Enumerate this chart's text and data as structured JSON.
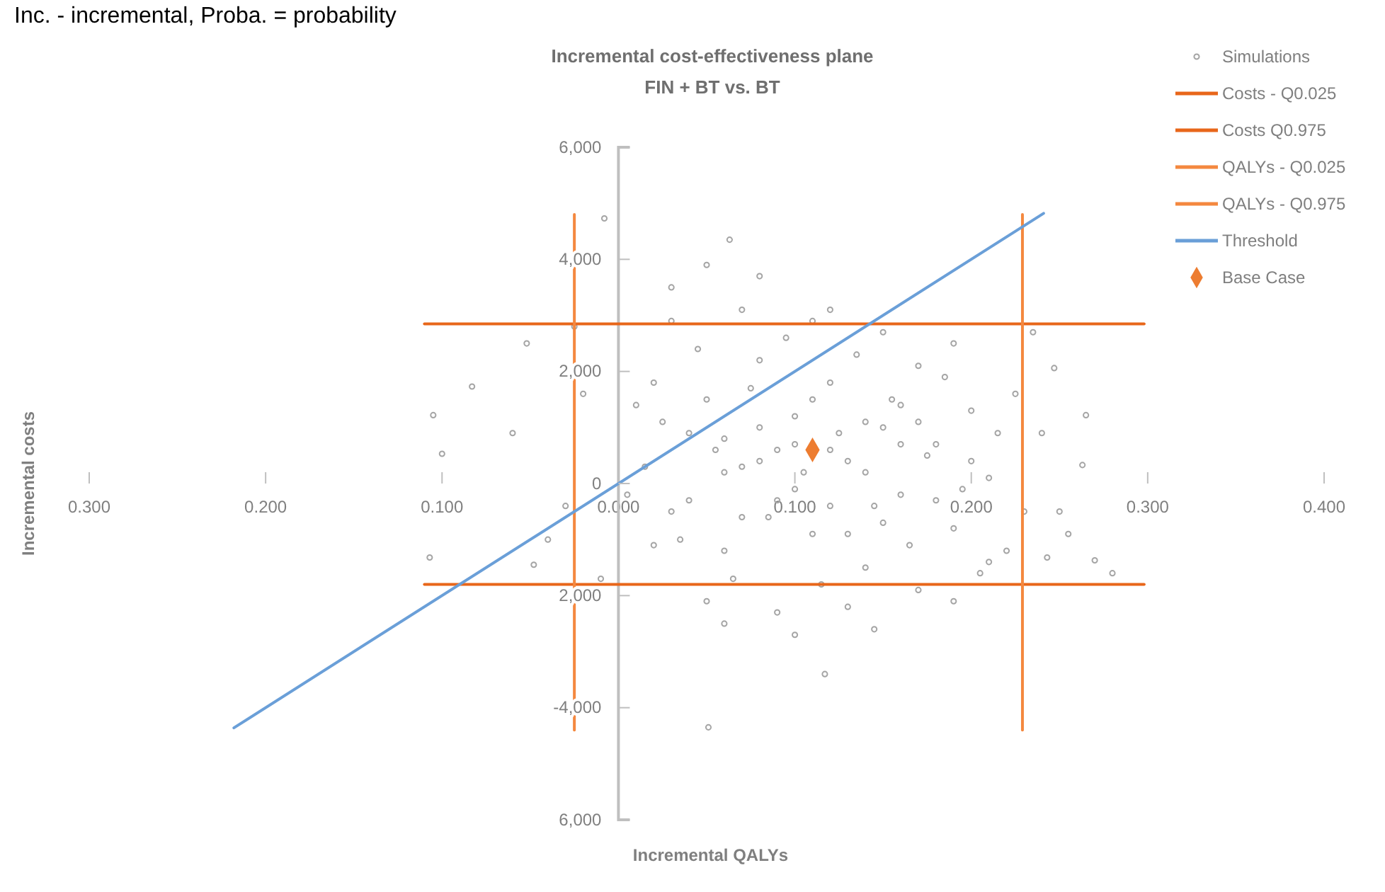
{
  "chart_data": {
    "type": "scatter",
    "title": "Incremental cost-effectiveness plane",
    "subtitle": "FIN + BT vs. BT",
    "xlabel": "Incremental QALYs",
    "ylabel": "Incremental costs",
    "annotations": [
      "Inc. - incremental, Proba. = probability"
    ],
    "xlim": [
      -0.3,
      0.4
    ],
    "ylim": [
      -6000,
      6000
    ],
    "xticks": [
      {
        "value": -0.3,
        "label": "0.300"
      },
      {
        "value": -0.2,
        "label": "0.200"
      },
      {
        "value": -0.1,
        "label": "0.100"
      },
      {
        "value": 0,
        "label": "0.000"
      },
      {
        "value": 0.1,
        "label": "0.100"
      },
      {
        "value": 0.2,
        "label": "0.200"
      },
      {
        "value": 0.3,
        "label": "0.300"
      },
      {
        "value": 0.4,
        "label": "0.400"
      }
    ],
    "yticks": [
      {
        "value": -6000,
        "label": "6,000"
      },
      {
        "value": -4000,
        "label": "-4,000"
      },
      {
        "value": -2000,
        "label": "2,000"
      },
      0,
      {
        "value": 2000,
        "label": "2,000"
      },
      {
        "value": 4000,
        "label": "4,000"
      },
      {
        "value": 6000,
        "label": "6,000"
      }
    ],
    "legend": "right",
    "series": [
      {
        "name": "Simulations",
        "marker": "circle",
        "color": "#a5a5a5",
        "x": [
          0.02,
          0.03,
          0.04,
          0.05,
          0.06,
          0.07,
          0.08,
          0.09,
          0.1,
          0.11,
          0.12,
          0.13,
          0.14,
          0.15,
          0.16,
          0.17,
          0.18,
          0.19,
          0.2,
          0.21,
          0.22,
          0.015,
          0.025,
          0.035,
          0.045,
          0.055,
          0.065,
          0.075,
          0.085,
          0.095,
          0.105,
          0.115,
          0.125,
          0.135,
          0.145,
          0.155,
          0.165,
          0.175,
          0.185,
          0.195,
          0.205,
          0.215,
          0.005,
          0.01,
          0.03,
          0.05,
          0.07,
          0.09,
          0.11,
          0.13,
          0.15,
          0.17,
          0.19,
          0.21,
          0.225,
          0.23,
          0.06,
          0.08,
          0.1,
          0.12,
          0.14,
          0.16,
          0.18,
          0.1,
          0.12,
          0.08,
          0.14,
          0.16,
          0.06,
          0.04,
          0.11,
          0.13,
          0.09,
          0.15,
          0.17,
          0.07,
          0.2,
          0.02,
          -0.008,
          0.063,
          0.05,
          0.08,
          0.12,
          0.03,
          -0.105,
          -0.1,
          -0.083,
          -0.052,
          -0.107,
          -0.048,
          -0.06,
          -0.03,
          -0.02,
          -0.04,
          0.051,
          0.117,
          0.1,
          0.145,
          0.06,
          0.243,
          0.263,
          0.27,
          0.247,
          0.265,
          0.25,
          0.24,
          0.28,
          0.255,
          0.19,
          0.235,
          -0.01,
          -0.025
        ],
        "values": [
          1800,
          -500,
          900,
          1500,
          -1200,
          300,
          2200,
          -300,
          1200,
          -900,
          1800,
          400,
          -1500,
          1000,
          -200,
          2100,
          700,
          -800,
          1300,
          100,
          -1200,
          300,
          1100,
          -1000,
          2400,
          600,
          -1700,
          1700,
          -600,
          2600,
          200,
          -1800,
          900,
          2300,
          -400,
          1500,
          -1100,
          500,
          1900,
          -100,
          -1600,
          900,
          -200,
          1400,
          2900,
          -2100,
          3100,
          -2300,
          2900,
          -2200,
          2700,
          -1900,
          2500,
          -1400,
          1600,
          -500,
          800,
          400,
          -100,
          600,
          1100,
          700,
          -300,
          700,
          -400,
          1000,
          200,
          1400,
          200,
          -300,
          1500,
          -900,
          600,
          -700,
          1100,
          -600,
          400,
          -1100,
          4730,
          4350,
          3900,
          3700,
          3100,
          3500,
          1220,
          530,
          1730,
          2500,
          -1320,
          -1450,
          900,
          -400,
          1600,
          -1000,
          -4350,
          -3400,
          -2700,
          -2600,
          -2500,
          -1320,
          330,
          -1370,
          2060,
          1220,
          -500,
          900,
          -1600,
          -900,
          -2100,
          2700,
          -1700,
          2800
        ]
      },
      {
        "name": "Costs - Q0.025",
        "type": "line",
        "color": "#e8661a",
        "x": [
          -0.11,
          0.298
        ],
        "values": [
          -1800,
          -1800
        ]
      },
      {
        "name": "Costs   Q0.975",
        "type": "line",
        "color": "#e8661a",
        "x": [
          -0.11,
          0.298
        ],
        "values": [
          2850,
          2850
        ]
      },
      {
        "name": "QALYs - Q0.025",
        "type": "line",
        "color": "#f4883f",
        "x": [
          -0.025,
          -0.025
        ],
        "values": [
          4800,
          -4400
        ]
      },
      {
        "name": "QALYs - Q0.975",
        "type": "line",
        "color": "#f4883f",
        "x": [
          0.229,
          0.229
        ],
        "values": [
          4800,
          -4400
        ]
      },
      {
        "name": "Threshold",
        "type": "line",
        "color": "#6a9fd8",
        "x": [
          -0.218,
          0.241
        ],
        "values": [
          -4360,
          4820
        ]
      },
      {
        "name": "Base Case",
        "marker": "diamond",
        "color": "#ed7d31",
        "x": [
          0.11
        ],
        "values": [
          600
        ]
      }
    ]
  }
}
